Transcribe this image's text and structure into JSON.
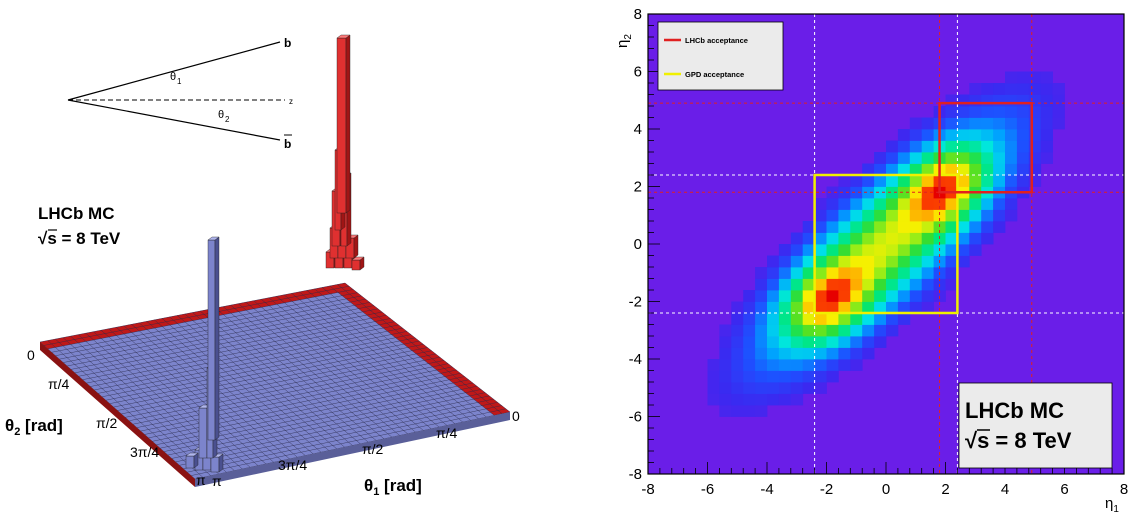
{
  "left_panel": {
    "diagram": {
      "b_label": "b",
      "bbar_label": "b",
      "z_label": "z",
      "theta1_label": "θ",
      "theta1_sub": "1",
      "theta2_label": "θ",
      "theta2_sub": "2"
    },
    "annotation": {
      "line1": "LHCb MC",
      "line2_sqrt": "√s",
      "line2_rest": " = 8 TeV"
    },
    "axis_theta2": {
      "label": "θ",
      "sub": "2",
      "unit": " [rad]"
    },
    "axis_theta1": {
      "label": "θ",
      "sub": "1",
      "unit": " [rad]"
    },
    "theta2_ticks": [
      "0",
      "π/4",
      "π/2",
      "3π/4",
      "π"
    ],
    "theta1_ticks": [
      "π",
      "3π/4",
      "π/2",
      "π/4",
      "0"
    ]
  },
  "chart_data": [
    {
      "type": "heatmap",
      "title": "",
      "xlabel": "θ1 [rad]",
      "ylabel": "θ2 [rad]",
      "note": "3D lego histogram of b and b̄ production angles; sharp peaks at θ1=θ2=0 (red) and θ1=θ2=π (blue)",
      "series": [
        {
          "name": "",
          "color": "#e03030",
          "peak_at": [
            "0",
            "0"
          ]
        },
        {
          "name": "",
          "color": "#7c84cc",
          "peak_at": [
            "π",
            "π"
          ]
        }
      ]
    },
    {
      "type": "heatmap",
      "title": "",
      "xlabel": "η1",
      "ylabel": "η2",
      "xlim": [
        -8,
        8
      ],
      "ylim": [
        -8,
        8
      ],
      "xticks": [
        "-8",
        "-6",
        "-4",
        "-2",
        "0",
        "2",
        "4",
        "6",
        "8"
      ],
      "yticks": [
        "-8",
        "-6",
        "-4",
        "-2",
        "0",
        "2",
        "4",
        "6",
        "8"
      ],
      "legend_position": "top-left",
      "legend": [
        {
          "name": "LHCb acceptance",
          "color": "#e02020"
        },
        {
          "name": "GPD acceptance",
          "color": "#f0f000"
        }
      ],
      "regions": [
        {
          "name": "LHCb acceptance",
          "eta1": [
            1.8,
            4.9
          ],
          "eta2": [
            1.8,
            4.9
          ]
        },
        {
          "name": "GPD acceptance",
          "eta1": [
            -2.4,
            2.4
          ],
          "eta2": [
            -2.4,
            2.4
          ]
        }
      ],
      "hotspots": [
        [
          -2.0,
          -2.0
        ],
        [
          2.0,
          2.0
        ]
      ],
      "annotation": {
        "line1": "LHCb MC",
        "line2_sqrt": "√s",
        "line2_rest": " = 8 TeV"
      },
      "background_color": "#6a1ee8"
    }
  ]
}
